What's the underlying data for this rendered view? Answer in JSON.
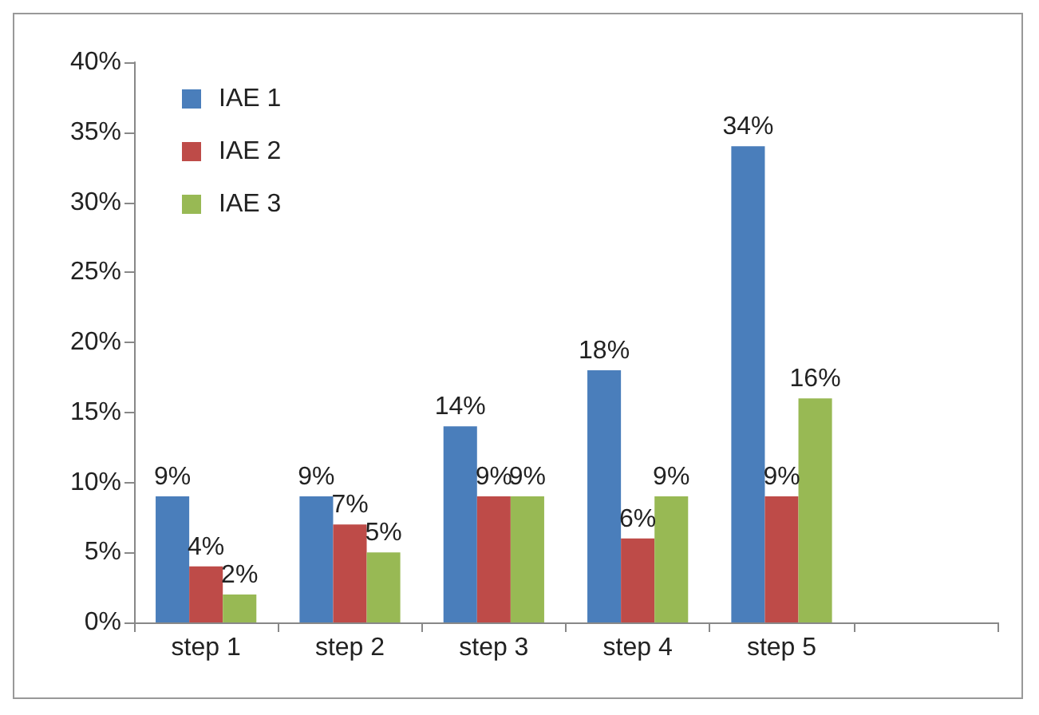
{
  "chart_data": {
    "type": "bar",
    "categories": [
      "step 1",
      "step 2",
      "step 3",
      "step 4",
      "step 5",
      null
    ],
    "series": [
      {
        "name": "IAE 1",
        "color": "#4a7ebb",
        "values": [
          9,
          9,
          14,
          18,
          34,
          null
        ],
        "value_labels": [
          "9%",
          "9%",
          "14%",
          "18%",
          "34%",
          null
        ]
      },
      {
        "name": "IAE 2",
        "color": "#be4b48",
        "values": [
          4,
          7,
          9,
          6,
          9,
          null
        ],
        "value_labels": [
          "4%",
          "7%",
          "9%",
          "6%",
          "9%",
          null
        ]
      },
      {
        "name": "IAE 3",
        "color": "#98b954",
        "values": [
          2,
          5,
          9,
          9,
          16,
          null
        ],
        "value_labels": [
          "2%",
          "5%",
          "9%",
          "9%",
          "16%",
          null
        ]
      }
    ],
    "ylim": [
      0,
      40
    ],
    "yticks": [
      {
        "value": 0,
        "label": "0%"
      },
      {
        "value": 5,
        "label": "5%"
      },
      {
        "value": 10,
        "label": "10%"
      },
      {
        "value": 15,
        "label": "15%"
      },
      {
        "value": 20,
        "label": "20%"
      },
      {
        "value": 25,
        "label": "25%"
      },
      {
        "value": 30,
        "label": "30%"
      },
      {
        "value": 35,
        "label": "35%"
      },
      {
        "value": 40,
        "label": "40%"
      }
    ],
    "legend": "top left",
    "grid": false
  }
}
